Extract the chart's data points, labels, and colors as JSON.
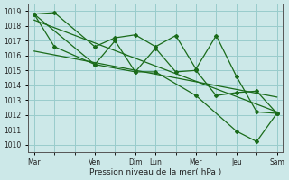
{
  "xlabel": "Pression niveau de la mer( hPa )",
  "ylim": [
    1009.5,
    1019.5
  ],
  "yticks": [
    1010,
    1011,
    1012,
    1013,
    1014,
    1015,
    1016,
    1017,
    1018,
    1019
  ],
  "bg_color": "#cce8e8",
  "grid_color": "#99cccc",
  "line_color": "#1a6b1a",
  "day_labels": [
    "Mar",
    "Ven",
    "Dim",
    "Lun",
    "Mer",
    "Jeu",
    "Sam"
  ],
  "day_positions": [
    0,
    3,
    5,
    6,
    8,
    10,
    12
  ],
  "xlim": [
    -0.3,
    12.3
  ],
  "xminor": 1,
  "series1_x": [
    0,
    1,
    3,
    4,
    5,
    6,
    7,
    8,
    9,
    10,
    11,
    12
  ],
  "series1_y": [
    1018.8,
    1018.9,
    1016.6,
    1017.2,
    1017.4,
    1016.6,
    1017.35,
    1015.1,
    1017.35,
    1014.6,
    1012.2,
    1012.1
  ],
  "series2_x": [
    0,
    1,
    3,
    4,
    5,
    6,
    7,
    8,
    9,
    10,
    11,
    12
  ],
  "series2_y": [
    1018.8,
    1016.6,
    1015.4,
    1017.0,
    1014.9,
    1016.5,
    1014.9,
    1015.0,
    1013.3,
    1013.5,
    1013.6,
    1012.1
  ],
  "series3_x": [
    0,
    3,
    5,
    6,
    8,
    10,
    11,
    12
  ],
  "series3_y": [
    1018.8,
    1015.4,
    1014.9,
    1014.9,
    1013.3,
    1010.9,
    1010.2,
    1012.1
  ],
  "trend1_x": [
    0,
    12
  ],
  "trend1_y": [
    1018.4,
    1012.2
  ],
  "trend2_x": [
    0,
    12
  ],
  "trend2_y": [
    1016.3,
    1013.2
  ]
}
